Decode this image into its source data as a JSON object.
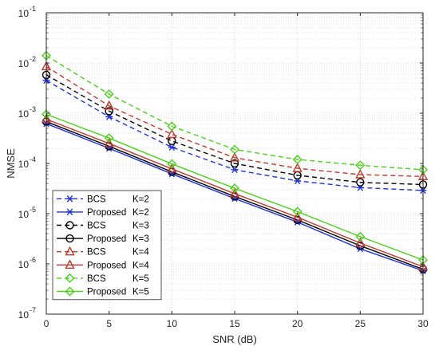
{
  "chart_data": {
    "type": "line",
    "title": "",
    "xlabel": "SNR (dB)",
    "ylabel": "NMSE",
    "yscale": "log",
    "xlim": [
      0,
      30
    ],
    "ylim": [
      1e-07,
      0.1
    ],
    "x": [
      0,
      5,
      10,
      15,
      20,
      25,
      30
    ],
    "x_ticks": [
      "0",
      "5",
      "10",
      "15",
      "20",
      "25",
      "30"
    ],
    "y_ticks": [
      {
        "base": "10",
        "exp": "-7",
        "value": 1e-07
      },
      {
        "base": "10",
        "exp": "-6",
        "value": 1e-06
      },
      {
        "base": "10",
        "exp": "-5",
        "value": 1e-05
      },
      {
        "base": "10",
        "exp": "-4",
        "value": 0.0001
      },
      {
        "base": "10",
        "exp": "-3",
        "value": 0.001
      },
      {
        "base": "10",
        "exp": "-2",
        "value": 0.01
      },
      {
        "base": "10",
        "exp": "-1",
        "value": 0.1
      }
    ],
    "grid": true,
    "minor_grid": true,
    "legend_position": "bottom-left",
    "series": [
      {
        "name": "BCS",
        "k_label": "K=2",
        "color": "#1f33d9",
        "dash": true,
        "marker": "asterisk",
        "values": [
          0.0045,
          0.00085,
          0.00021,
          7.5e-05,
          4.5e-05,
          3.3e-05,
          2.9e-05
        ]
      },
      {
        "name": "Proposed",
        "k_label": "K=2",
        "color": "#1f33d9",
        "dash": false,
        "marker": "asterisk",
        "values": [
          0.00062,
          0.0002,
          6.2e-05,
          2e-05,
          6.8e-06,
          2e-06,
          7.3e-07
        ]
      },
      {
        "name": "BCS",
        "k_label": "K=3",
        "color": "#000000",
        "dash": true,
        "marker": "circle",
        "values": [
          0.0058,
          0.0011,
          0.00028,
          0.0001,
          5.8e-05,
          4.2e-05,
          3.8e-05
        ]
      },
      {
        "name": "Proposed",
        "k_label": "K=3",
        "color": "#000000",
        "dash": false,
        "marker": "circle",
        "values": [
          0.00068,
          0.00022,
          6.8e-05,
          2.2e-05,
          7.5e-06,
          2.3e-06,
          7.8e-07
        ]
      },
      {
        "name": "BCS",
        "k_label": "K=4",
        "color": "#c0392b",
        "dash": true,
        "marker": "triangle",
        "values": [
          0.0085,
          0.0014,
          0.00038,
          0.00013,
          8e-05,
          6e-05,
          5.5e-05
        ]
      },
      {
        "name": "Proposed",
        "k_label": "K=4",
        "color": "#c0392b",
        "dash": false,
        "marker": "triangle",
        "values": [
          0.00076,
          0.00025,
          7.8e-05,
          2.5e-05,
          8.5e-06,
          2.6e-06,
          8.8e-07
        ]
      },
      {
        "name": "BCS",
        "k_label": "K=5",
        "color": "#4ad31a",
        "dash": true,
        "marker": "diamond",
        "values": [
          0.014,
          0.0024,
          0.00055,
          0.00019,
          0.00012,
          9.2e-05,
          7.5e-05
        ]
      },
      {
        "name": "Proposed",
        "k_label": "K=5",
        "color": "#4ad31a",
        "dash": false,
        "marker": "diamond",
        "values": [
          0.00095,
          0.00032,
          9.8e-05,
          3.2e-05,
          1.1e-05,
          3.5e-06,
          1.2e-06
        ]
      }
    ]
  }
}
